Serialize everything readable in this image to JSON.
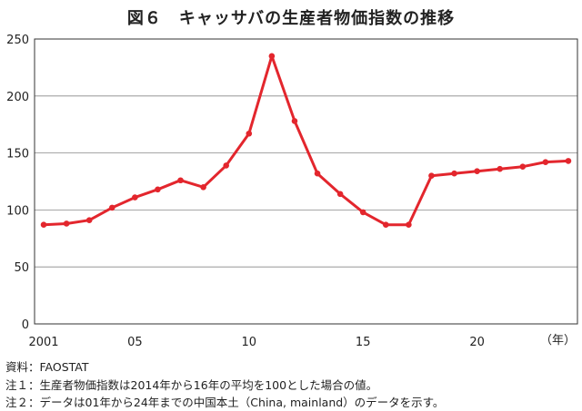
{
  "title": "図６　キャッサバの生産者物価指数の推移",
  "notes": {
    "source": "資料：FAOSTAT",
    "note1": "注１：生産者物価指数は2014年から16年の平均を100とした場合の値。",
    "note2": "注２：データは01年から24年までの中国本土（China, mainland）のデータを示す。"
  },
  "chart_data": {
    "type": "line",
    "title": "図６　キャッサバの生産者物価指数の推移",
    "xlabel": "（年）",
    "ylabel": "",
    "ylim": [
      0,
      250
    ],
    "yticks": [
      0,
      50,
      100,
      150,
      200,
      250
    ],
    "xlim": [
      2001,
      2024
    ],
    "xticks": [
      {
        "value": 2001,
        "label": "2001"
      },
      {
        "value": 2005,
        "label": "05"
      },
      {
        "value": 2010,
        "label": "10"
      },
      {
        "value": 2015,
        "label": "15"
      },
      {
        "value": 2020,
        "label": "20"
      }
    ],
    "grid": true,
    "line_color": "#e3262d",
    "x": [
      2001,
      2002,
      2003,
      2004,
      2005,
      2006,
      2007,
      2008,
      2009,
      2010,
      2011,
      2012,
      2013,
      2014,
      2015,
      2016,
      2017,
      2018,
      2019,
      2020,
      2021,
      2022,
      2023,
      2024
    ],
    "series": [
      {
        "values": [
          87,
          88,
          91,
          102,
          111,
          118,
          126,
          120,
          139,
          167,
          235,
          178,
          132,
          114,
          98,
          87,
          87,
          130,
          132,
          134,
          136,
          138,
          142,
          143
        ]
      }
    ]
  }
}
